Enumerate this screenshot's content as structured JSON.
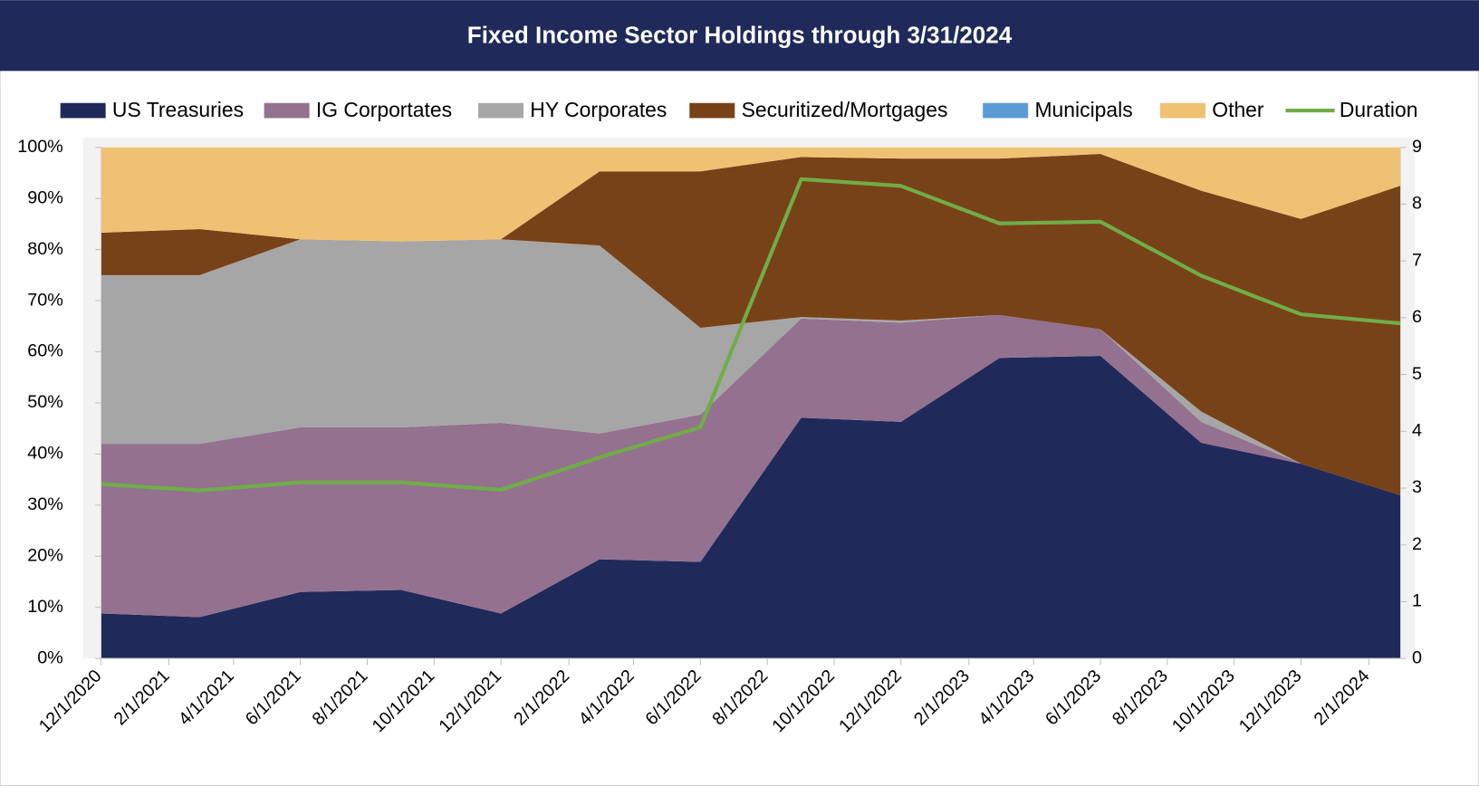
{
  "chart_data": {
    "type": "stacked-area",
    "title": "Fixed Income Sector Holdings through 3/31/2024",
    "x": [
      "12/1/2020",
      "3/1/2021",
      "6/1/2021",
      "9/1/2021",
      "12/1/2021",
      "3/1/2022",
      "6/1/2022",
      "9/1/2022",
      "12/1/2022",
      "3/1/2023",
      "6/1/2023",
      "9/1/2023",
      "12/1/2023",
      "3/1/2024"
    ],
    "series": [
      {
        "name": "US Treasuries",
        "color": "#1f2a5a",
        "values": [
          8.8,
          8.1,
          13,
          13.4,
          8.8,
          19.4,
          18.9,
          47.1,
          46.3,
          58.8,
          59.2,
          42.2,
          38.1,
          31.9
        ]
      },
      {
        "name": "IG Corportates",
        "color": "#93718f",
        "values": [
          33.2,
          33.9,
          32.2,
          31.8,
          37.3,
          24.6,
          28.8,
          19.4,
          19.4,
          8.4,
          5.2,
          4.1,
          0,
          0
        ]
      },
      {
        "name": "HY Corporates",
        "color": "#a6a6a6",
        "values": [
          33,
          33,
          36.8,
          36.4,
          35.9,
          36.8,
          17,
          0.3,
          0.4,
          0,
          0,
          2,
          0,
          0
        ]
      },
      {
        "name": "Securitized/Mortgages",
        "color": "#784218",
        "values": [
          8.3,
          9,
          0,
          0,
          0,
          14.5,
          30.6,
          31.3,
          31.7,
          30.6,
          34.3,
          43.2,
          47.9,
          60.6
        ]
      },
      {
        "name": "Municipals",
        "color": "#5b9bd5",
        "values": [
          0,
          0,
          0,
          0,
          0,
          0,
          0,
          0,
          0,
          0,
          0,
          0,
          0,
          0
        ]
      },
      {
        "name": "Other",
        "color": "#f0c173",
        "values": [
          16.7,
          16,
          18,
          18.4,
          18,
          4.7,
          4.7,
          1.9,
          2.2,
          2.2,
          1.3,
          8.5,
          14,
          7.5
        ]
      },
      {
        "name": "Duration",
        "color": "#70ad47",
        "axis": "y2",
        "type": "line",
        "values": [
          3.07,
          2.96,
          3.1,
          3.1,
          2.97,
          3.54,
          4.07,
          8.44,
          8.32,
          7.66,
          7.69,
          6.74,
          6.06,
          5.9
        ]
      }
    ],
    "xlim": [
      "12/1/2020",
      "3/1/2024"
    ],
    "xticks": [
      "12/1/2020",
      "2/1/2021",
      "4/1/2021",
      "6/1/2021",
      "8/1/2021",
      "10/1/2021",
      "12/1/2021",
      "2/1/2022",
      "4/1/2022",
      "6/1/2022",
      "8/1/2022",
      "10/1/2022",
      "12/1/2022",
      "2/1/2023",
      "4/1/2023",
      "6/1/2023",
      "8/1/2023",
      "10/1/2023",
      "12/1/2023",
      "2/1/2024"
    ],
    "ylim": [
      0,
      100
    ],
    "yticks": [
      {
        "value": 0,
        "label": "0%"
      },
      {
        "value": 10,
        "label": "10%"
      },
      {
        "value": 20,
        "label": "20%"
      },
      {
        "value": 30,
        "label": "30%"
      },
      {
        "value": 40,
        "label": "40%"
      },
      {
        "value": 50,
        "label": "50%"
      },
      {
        "value": 60,
        "label": "60%"
      },
      {
        "value": 70,
        "label": "70%"
      },
      {
        "value": 80,
        "label": "80%"
      },
      {
        "value": 90,
        "label": "90%"
      },
      {
        "value": 100,
        "label": "100%"
      }
    ],
    "y2lim": [
      0,
      9
    ],
    "y2ticks": [
      0,
      1,
      2,
      3,
      4,
      5,
      6,
      7,
      8,
      9
    ],
    "legend": "top"
  }
}
